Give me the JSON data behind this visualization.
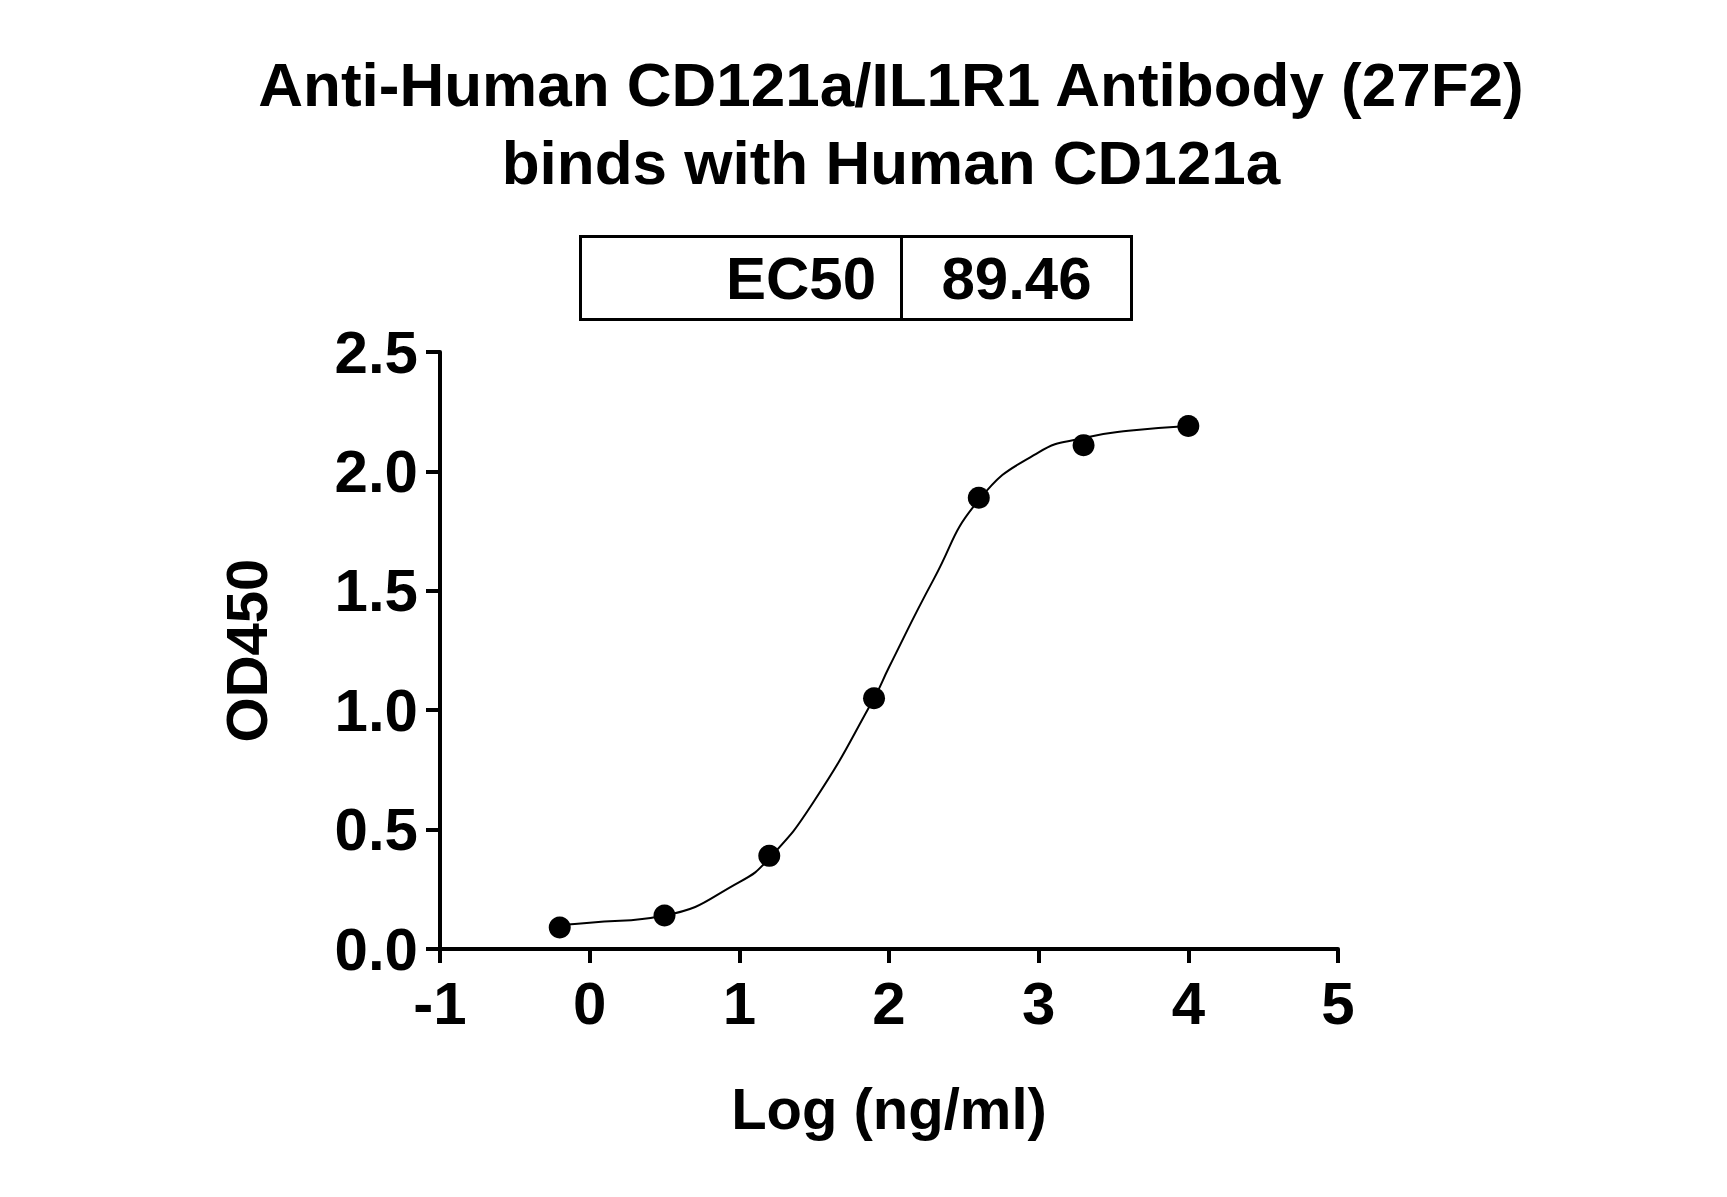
{
  "chart_data": {
    "type": "scatter",
    "title": "Anti-Human CD121a/IL1R1 Antibody (27F2)\nbinds with Human CD121a",
    "xlabel": "Log (ng/ml)",
    "ylabel": "OD450",
    "annotations": [
      "EC50",
      "89.46"
    ],
    "xlim": [
      -1,
      5
    ],
    "xticks": [
      -1,
      0,
      1,
      2,
      3,
      4,
      5
    ],
    "ylim": [
      0,
      2.5
    ],
    "yticks": [
      {
        "value": 0,
        "label": "0.0"
      },
      {
        "value": 0.5,
        "label": "0.5"
      },
      {
        "value": 1,
        "label": "1.0"
      },
      {
        "value": 1.5,
        "label": "1.5"
      },
      {
        "value": 2,
        "label": "2.0"
      },
      {
        "value": 2.5,
        "label": "2.5"
      }
    ],
    "grid": false,
    "series": [
      {
        "color": "#000000",
        "marker": "circle",
        "x": [
          -0.2,
          0.5,
          1.2,
          1.9,
          2.6,
          3.3,
          4.0
        ],
        "values": [
          0.09,
          0.14,
          0.39,
          1.05,
          1.89,
          2.11,
          2.19
        ]
      },
      {
        "type": "line",
        "color": "#000000",
        "marker": "none",
        "line_style": "solid",
        "x": [
          -0.2,
          0,
          0.5,
          1.0,
          1.2,
          1.5,
          1.9,
          2.0,
          2.3,
          2.6,
          3.0,
          3.3,
          3.6,
          4.0
        ],
        "values": [
          0.1,
          0.11,
          0.14,
          0.28,
          0.38,
          0.62,
          1.05,
          1.18,
          1.55,
          1.88,
          2.08,
          2.14,
          2.17,
          2.19
        ]
      }
    ]
  }
}
